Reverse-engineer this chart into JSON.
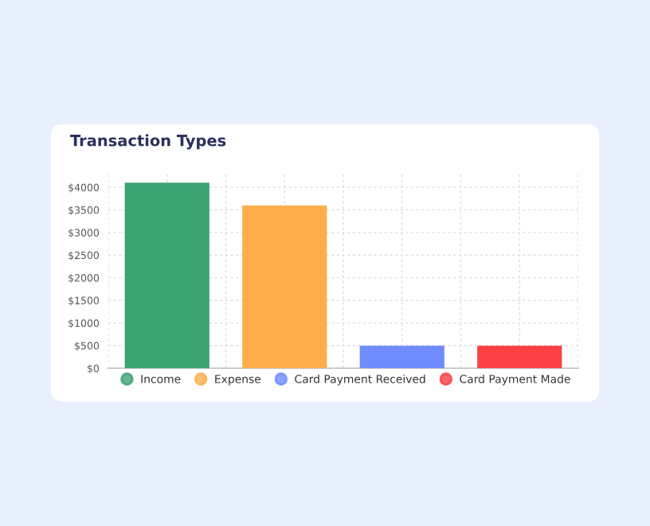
{
  "chart_data": {
    "type": "bar",
    "title": "Transaction Types",
    "categories": [
      null,
      null,
      null,
      null
    ],
    "series": [
      {
        "name": "Income",
        "color": "#3ba272",
        "values": [
          4100,
          null,
          null,
          null
        ]
      },
      {
        "name": "Expense",
        "color": "#fdae4b",
        "values": [
          null,
          3600,
          null,
          null
        ]
      },
      {
        "name": "Card Payment Received",
        "color": "#6f8cff",
        "values": [
          null,
          null,
          500,
          null
        ]
      },
      {
        "name": "Card Payment Made",
        "color": "#fc4145",
        "values": [
          null,
          null,
          null,
          500
        ]
      }
    ],
    "ylim": [
      0,
      4300
    ],
    "yticks": [
      {
        "value": 0,
        "label": "$0"
      },
      {
        "value": 500,
        "label": "$500"
      },
      {
        "value": 1000,
        "label": "$1000"
      },
      {
        "value": 1500,
        "label": "$1500"
      },
      {
        "value": 2000,
        "label": "$2000"
      },
      {
        "value": 2500,
        "label": "$2500"
      },
      {
        "value": 3000,
        "label": "$3000"
      },
      {
        "value": 3500,
        "label": "$3500"
      },
      {
        "value": 4000,
        "label": "$4000"
      }
    ],
    "grid": true,
    "legend": "bottom",
    "marker": "circle"
  }
}
